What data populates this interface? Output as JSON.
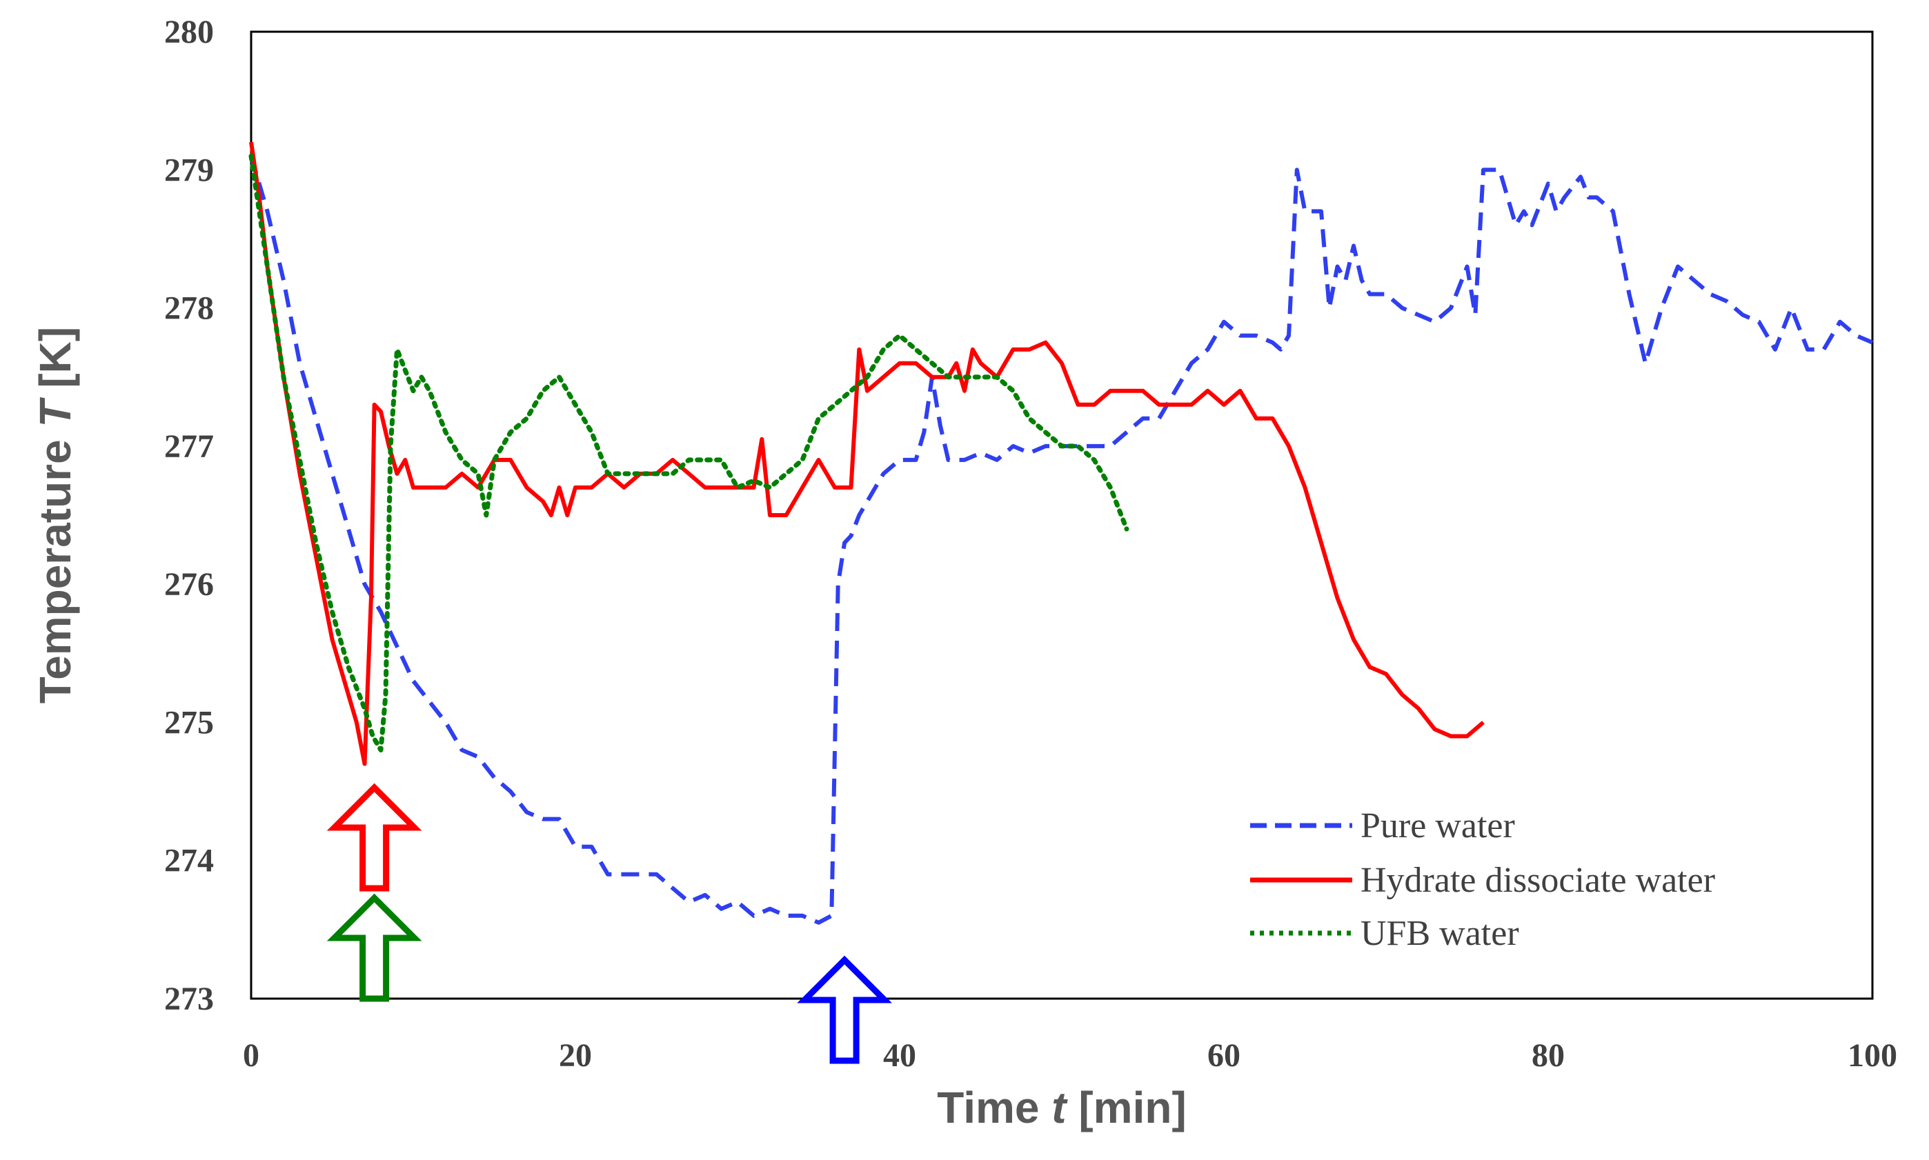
{
  "chart_data": {
    "type": "line",
    "title": "",
    "xlabel": "Time",
    "xlabel_var": "t",
    "xlabel_unit": "[min]",
    "ylabel": "Temperature",
    "ylabel_var": "T",
    "ylabel_unit": "[K]",
    "xlim": [
      0,
      100
    ],
    "ylim": [
      273,
      280
    ],
    "xticks": [
      "0",
      "20",
      "40",
      "60",
      "80",
      "100"
    ],
    "yticks": [
      "273",
      "274",
      "275",
      "276",
      "277",
      "278",
      "279",
      "280"
    ],
    "grid": false,
    "legend_position": "bottom-right",
    "series": [
      {
        "name": "Pure water",
        "color": "#2f3ff0",
        "style": "dashed",
        "x": [
          0,
          1,
          2,
          3,
          4,
          5,
          6,
          7,
          8,
          9,
          10,
          11,
          12,
          13,
          14,
          15,
          16,
          17,
          18,
          19,
          20,
          21,
          22,
          23,
          24,
          25,
          26,
          27,
          28,
          29,
          30,
          31,
          32,
          33,
          34,
          35,
          35.8,
          36.2,
          36.6,
          37,
          37.5,
          38,
          39,
          40,
          41,
          41.5,
          42,
          42.5,
          43,
          44,
          45,
          46,
          47,
          48,
          49,
          50,
          51,
          52,
          53,
          54,
          55,
          56,
          57,
          58,
          59,
          60,
          61,
          62,
          63,
          63.5,
          64,
          64.5,
          65,
          66,
          66.5,
          67,
          67.5,
          68,
          68.5,
          69,
          70,
          71,
          72,
          73,
          74,
          75,
          75.5,
          76,
          76.5,
          77,
          78,
          78.5,
          79,
          80,
          80.5,
          81,
          82,
          82.5,
          83,
          84,
          85,
          86,
          87,
          88,
          89,
          90,
          91,
          92,
          93,
          94,
          95,
          96,
          97,
          98,
          99,
          100
        ],
        "y": [
          279.1,
          278.7,
          278.2,
          277.6,
          277.2,
          276.8,
          276.4,
          276.0,
          275.8,
          275.55,
          275.3,
          275.15,
          275.0,
          274.8,
          274.75,
          274.6,
          274.5,
          274.35,
          274.3,
          274.3,
          274.1,
          274.1,
          273.9,
          273.9,
          273.9,
          273.9,
          273.8,
          273.7,
          273.75,
          273.65,
          273.7,
          273.6,
          273.65,
          273.6,
          273.6,
          273.55,
          273.6,
          276.0,
          276.3,
          276.35,
          276.5,
          276.6,
          276.8,
          276.9,
          276.9,
          277.1,
          277.5,
          277.15,
          276.9,
          276.9,
          276.95,
          276.9,
          277.0,
          276.95,
          277.0,
          277.0,
          277.0,
          277.0,
          277.0,
          277.1,
          277.2,
          277.2,
          277.4,
          277.6,
          277.7,
          277.9,
          277.8,
          277.8,
          277.75,
          277.7,
          277.8,
          279.0,
          278.7,
          278.7,
          278.0,
          278.3,
          278.2,
          278.45,
          278.2,
          278.1,
          278.1,
          278.0,
          277.95,
          277.9,
          278.0,
          278.3,
          277.95,
          279.0,
          279.0,
          279.0,
          278.6,
          278.7,
          278.6,
          278.9,
          278.7,
          278.8,
          278.95,
          278.8,
          278.8,
          278.7,
          278.1,
          277.6,
          278.0,
          278.3,
          278.2,
          278.1,
          278.05,
          277.95,
          277.9,
          277.7,
          278.0,
          277.7,
          277.7,
          277.9,
          277.8,
          277.75
        ],
        "label_x": null
      },
      {
        "name": "Hydrate dissociate water",
        "color": "#ff0000",
        "style": "solid",
        "x": [
          0,
          0.5,
          1,
          2,
          3,
          4,
          5,
          6,
          6.5,
          7,
          7.4,
          7.6,
          8,
          8.5,
          9,
          9.5,
          10,
          11,
          12,
          13,
          14,
          15,
          16,
          17,
          18,
          18.5,
          19,
          19.5,
          20,
          21,
          22,
          23,
          24,
          25,
          26,
          27,
          28,
          29,
          30,
          31,
          31.5,
          32,
          33,
          34,
          35,
          36,
          36.5,
          37,
          37.5,
          38,
          39,
          40,
          41,
          42,
          43,
          43.5,
          44,
          44.5,
          45,
          46,
          47,
          48,
          49,
          50,
          51,
          52,
          53,
          54,
          55,
          56,
          57,
          58,
          59,
          60,
          61,
          62,
          63,
          64,
          65,
          66,
          67,
          68,
          69,
          70,
          71,
          72,
          73,
          74,
          75,
          76
        ],
        "y": [
          279.2,
          278.8,
          278.3,
          277.5,
          276.8,
          276.2,
          275.6,
          275.2,
          275.0,
          274.7,
          275.9,
          277.3,
          277.25,
          277.0,
          276.8,
          276.9,
          276.7,
          276.7,
          276.7,
          276.8,
          276.7,
          276.9,
          276.9,
          276.7,
          276.6,
          276.5,
          276.7,
          276.5,
          276.7,
          276.7,
          276.8,
          276.7,
          276.8,
          276.8,
          276.9,
          276.8,
          276.7,
          276.7,
          276.7,
          276.7,
          277.05,
          276.5,
          276.5,
          276.7,
          276.9,
          276.7,
          276.7,
          276.7,
          277.7,
          277.4,
          277.5,
          277.6,
          277.6,
          277.5,
          277.5,
          277.6,
          277.4,
          277.7,
          277.6,
          277.5,
          277.7,
          277.7,
          277.75,
          277.6,
          277.3,
          277.3,
          277.4,
          277.4,
          277.4,
          277.3,
          277.3,
          277.3,
          277.4,
          277.3,
          277.4,
          277.2,
          277.2,
          277.0,
          276.7,
          276.3,
          275.9,
          275.6,
          275.4,
          275.35,
          275.2,
          275.1,
          274.95,
          274.9,
          274.9,
          275.0
        ],
        "label_x": null
      },
      {
        "name": "UFB water",
        "color": "#008000",
        "style": "dotted",
        "x": [
          0,
          1,
          2,
          3,
          4,
          5,
          6,
          7,
          7.5,
          8,
          8.3,
          8.6,
          9,
          10,
          10.5,
          11,
          12,
          13,
          14,
          14.5,
          15,
          16,
          17,
          18,
          19,
          20,
          21,
          22,
          23,
          24,
          25,
          26,
          27,
          28,
          29,
          30,
          31,
          32,
          33,
          34,
          35,
          36,
          37,
          38,
          39,
          40,
          41,
          42,
          43,
          44,
          45,
          46,
          47,
          48,
          49,
          50,
          51,
          52,
          53,
          54
        ],
        "y": [
          279.1,
          278.3,
          277.5,
          276.9,
          276.3,
          275.8,
          275.4,
          275.1,
          274.9,
          274.8,
          275.2,
          277.0,
          277.7,
          277.4,
          277.5,
          277.4,
          277.1,
          276.9,
          276.8,
          276.5,
          276.9,
          277.1,
          277.2,
          277.4,
          277.5,
          277.3,
          277.1,
          276.8,
          276.8,
          276.8,
          276.8,
          276.8,
          276.9,
          276.9,
          276.9,
          276.7,
          276.75,
          276.7,
          276.8,
          276.9,
          277.2,
          277.3,
          277.4,
          277.5,
          277.7,
          277.8,
          277.7,
          277.6,
          277.5,
          277.5,
          277.5,
          277.5,
          277.4,
          277.2,
          277.1,
          277.0,
          277.0,
          276.9,
          276.7,
          276.4
        ]
      }
    ],
    "annotations": [
      {
        "type": "arrow",
        "x": 7.6,
        "color": "#ff0000",
        "level": 2,
        "label": ""
      },
      {
        "type": "arrow",
        "x": 7.6,
        "color": "#008000",
        "level": 1,
        "label": ""
      },
      {
        "type": "arrow",
        "x": 36.6,
        "color": "#0000ff",
        "level": 0,
        "label": ""
      }
    ]
  }
}
